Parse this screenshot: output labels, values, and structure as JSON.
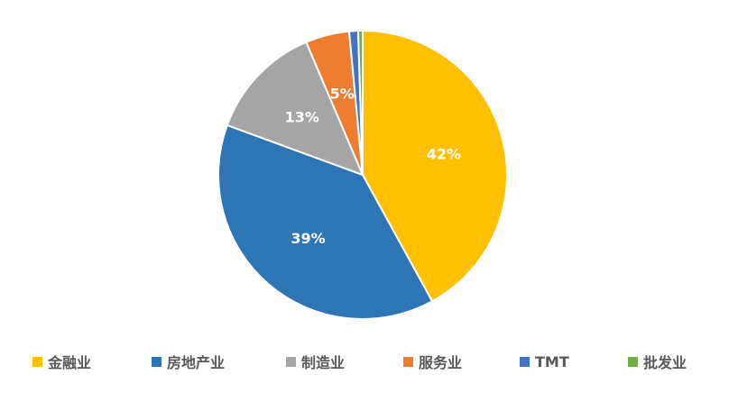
{
  "chart_data": {
    "type": "pie",
    "title": "",
    "start_angle_deg": 0,
    "direction": "clockwise",
    "legend_position": "bottom",
    "slices": [
      {
        "name": "金融业",
        "value": 42.0,
        "label": "42%",
        "color": "#FFC000"
      },
      {
        "name": "房地产业",
        "value": 38.6,
        "label": "39%",
        "color": "#2E75B6"
      },
      {
        "name": "制造业",
        "value": 13.0,
        "label": "13%",
        "color": "#A5A5A5"
      },
      {
        "name": "服务业",
        "value": 4.9,
        "label": "5%",
        "color": "#ED7D31"
      },
      {
        "name": "TMT",
        "value": 1.0,
        "label": "",
        "color": "#4472C4"
      },
      {
        "name": "批发业",
        "value": 0.5,
        "label": "",
        "color": "#70AD47"
      }
    ]
  }
}
